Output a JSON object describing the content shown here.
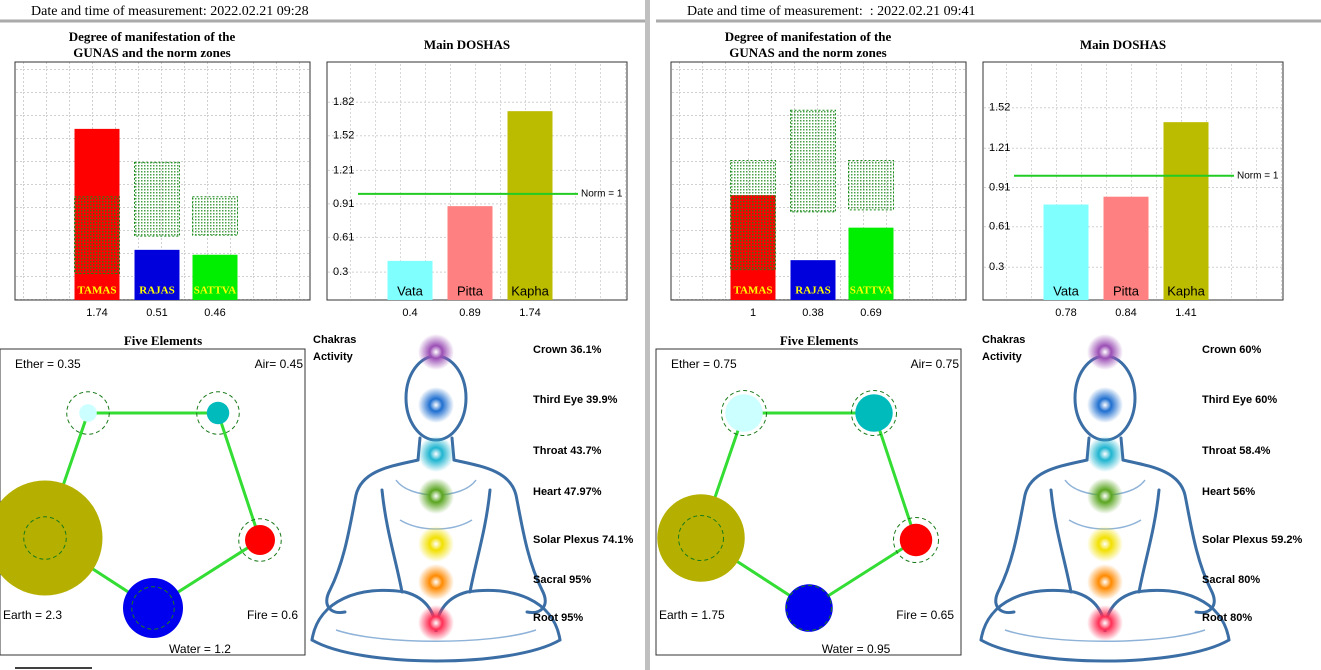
{
  "panels": [
    {
      "header": "Date and time of measurement: 2022.02.21 09:28",
      "gunas": {
        "type": "bar",
        "title_lines": [
          "Degree of manifestation of the",
          "GUNAS and the norm zones"
        ],
        "categories": [
          "TAMAS",
          "RAJAS",
          "SATTVA"
        ],
        "values": [
          1.74,
          0.51,
          0.46
        ],
        "colors": [
          "#ff0000",
          "#0000dd",
          "#00ee00"
        ],
        "norm_zones": [
          [
            0.27,
            1.05
          ],
          [
            0.65,
            1.4
          ],
          [
            0.66,
            1.05
          ]
        ],
        "ylim": [
          0,
          2.42
        ]
      },
      "doshas": {
        "type": "bar",
        "title": "Main DOSHAS",
        "categories": [
          "Vata",
          "Pitta",
          "Kapha"
        ],
        "values": [
          0.4,
          0.89,
          1.74
        ],
        "colors": [
          "#80ffff",
          "#ff8080",
          "#bbbb00"
        ],
        "ylim": [
          0.05,
          2.18
        ],
        "yticks": [
          0.3,
          0.61,
          0.91,
          1.21,
          1.52,
          1.82
        ],
        "norm": 1,
        "norm_label": "Norm = 1"
      },
      "elements": {
        "title": "Five Elements",
        "norm": 0.85,
        "items": [
          {
            "label": "Ether = 0.35",
            "value": 0.35,
            "color": "#ccffff"
          },
          {
            "label": "Air= 0.45",
            "value": 0.45,
            "color": "#00bbbb"
          },
          {
            "label": "Fire = 0.6",
            "value": 0.6,
            "color": "#ff0000"
          },
          {
            "label": "Water = 1.2",
            "value": 1.2,
            "color": "#0000ee"
          },
          {
            "label": "Earth = 2.3",
            "value": 2.3,
            "color": "#b5b000"
          }
        ]
      },
      "chakras": {
        "title_lines": [
          "Chakras",
          "Activity"
        ],
        "items": [
          "Crown 36.1%",
          "Third Eye 39.9%",
          "Throat 43.7%",
          "Heart 47.97%",
          "Solar Plexus 74.1%",
          "Sacral 95%",
          "Root 95%"
        ]
      }
    },
    {
      "header": "Date and time of measurement:  : 2022.02.21 09:41",
      "gunas": {
        "type": "bar",
        "title_lines": [
          "Degree of manifestation of the",
          "GUNAS and the norm zones"
        ],
        "categories": [
          "TAMAS",
          "RAJAS",
          "SATTVA"
        ],
        "values": [
          1,
          0.38,
          0.69
        ],
        "colors": [
          "#ff0000",
          "#0000dd",
          "#00ee00"
        ],
        "norm_zones": [
          [
            0.29,
            1.33
          ],
          [
            0.84,
            1.81
          ],
          [
            0.86,
            1.33
          ]
        ],
        "ylim": [
          0,
          2.27
        ]
      },
      "doshas": {
        "type": "bar",
        "title": "Main DOSHAS",
        "categories": [
          "Vata",
          "Pitta",
          "Kapha"
        ],
        "values": [
          0.78,
          0.84,
          1.41
        ],
        "colors": [
          "#80ffff",
          "#ff8080",
          "#bbbb00"
        ],
        "ylim": [
          0.05,
          1.87
        ],
        "yticks": [
          0.3,
          0.61,
          0.91,
          1.21,
          1.52
        ],
        "norm": 1,
        "norm_label": "Norm = 1"
      },
      "elements": {
        "title": "Five Elements",
        "norm": 0.9,
        "items": [
          {
            "label": "Ether = 0.75",
            "value": 0.75,
            "color": "#ccffff"
          },
          {
            "label": "Air= 0.75",
            "value": 0.75,
            "color": "#00bbbb"
          },
          {
            "label": "Fire = 0.65",
            "value": 0.65,
            "color": "#ff0000"
          },
          {
            "label": "Water = 0.95",
            "value": 0.95,
            "color": "#0000ee"
          },
          {
            "label": "Earth = 1.75",
            "value": 1.75,
            "color": "#b5b000"
          }
        ]
      },
      "chakras": {
        "title_lines": [
          "Chakras",
          "Activity"
        ],
        "items": [
          "Crown 60%",
          "Third Eye 60%",
          "Throat 58.4%",
          "Heart 56%",
          "Solar Plexus 59.2%",
          "Sacral 80%",
          "Root 80%"
        ]
      }
    }
  ]
}
